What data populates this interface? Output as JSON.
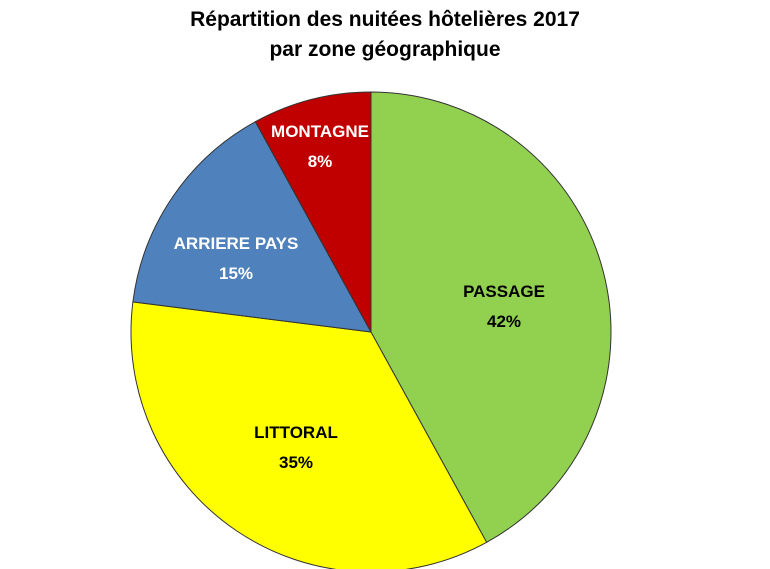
{
  "chart_data": {
    "type": "pie",
    "title": "Répartition des nuitées hôtelières 2017",
    "subtitle": "par zone géographique",
    "slices": [
      {
        "label": "PASSAGE",
        "value": 42,
        "value_label": "42%",
        "color": "#92D050",
        "text_color": "#000000"
      },
      {
        "label": "LITTORAL",
        "value": 35,
        "value_label": "35%",
        "color": "#FFFF00",
        "text_color": "#000000"
      },
      {
        "label": "ARRIERE PAYS",
        "value": 15,
        "value_label": "15%",
        "color": "#4F81BD",
        "text_color": "#FFFFFF"
      },
      {
        "label": "MONTAGNE",
        "value": 8,
        "value_label": "8%",
        "color": "#C00000",
        "text_color": "#FFFFFF"
      }
    ],
    "start": "12 o'clock",
    "direction": "clockwise",
    "legend": "none",
    "data_labels": "inside slices"
  }
}
